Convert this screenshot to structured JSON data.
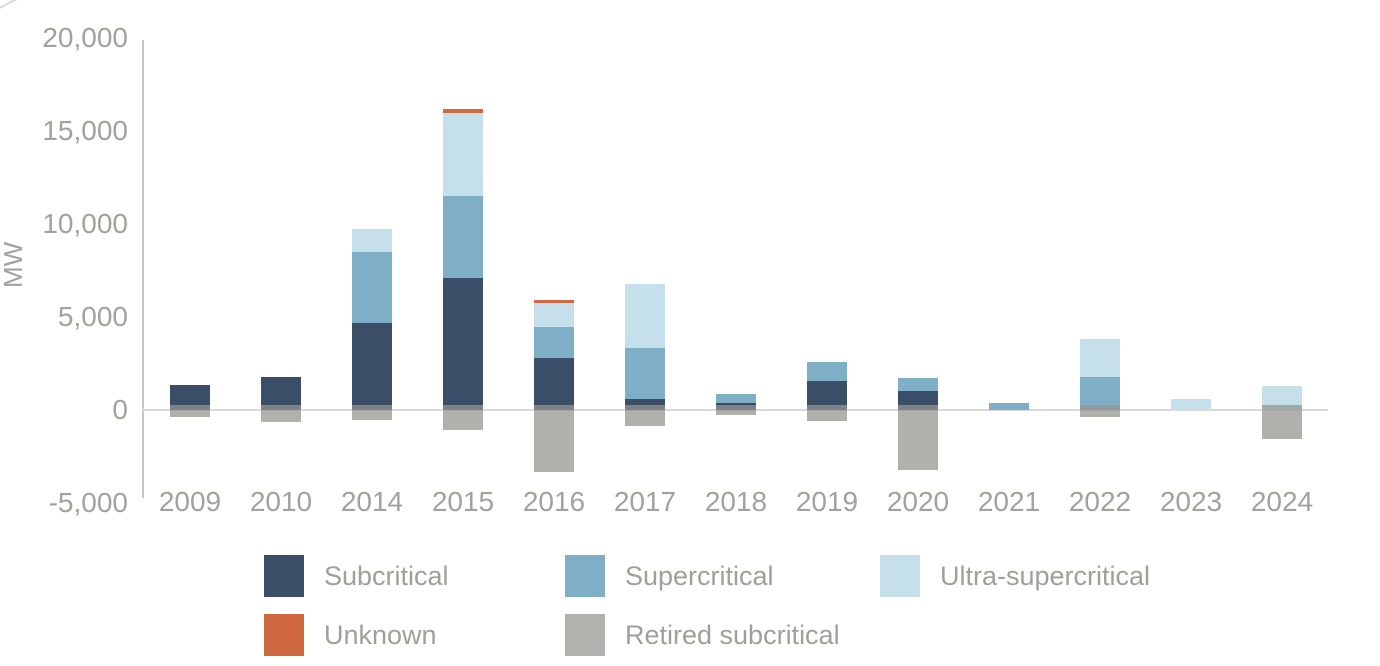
{
  "chart_data": {
    "type": "bar",
    "stacked": true,
    "title": "",
    "xlabel": "",
    "ylabel": "MW",
    "ylim": [
      -5000,
      20000
    ],
    "grid": false,
    "legend_position": "bottom",
    "yticks": [
      {
        "value": 20000,
        "label": "20,000"
      },
      {
        "value": 15000,
        "label": "15,000"
      },
      {
        "value": 10000,
        "label": "10,000"
      },
      {
        "value": 5000,
        "label": "5,000"
      },
      {
        "value": 0,
        "label": "0"
      },
      {
        "value": -5000,
        "label": "-5,000"
      }
    ],
    "categories": [
      "2009",
      "2010",
      "2014",
      "2015",
      "2016",
      "2017",
      "2018",
      "2019",
      "2020",
      "2021",
      "2022",
      "2023",
      "2024"
    ],
    "series": [
      {
        "name": "Subcritical",
        "color": "#3a4e68",
        "values": [
          1350,
          1800,
          4700,
          7100,
          2800,
          600,
          400,
          1550,
          1000,
          0,
          0,
          0,
          0
        ]
      },
      {
        "name": "Supercritical",
        "color": "#7fafc6",
        "values": [
          0,
          0,
          3800,
          4400,
          1650,
          2750,
          450,
          1050,
          700,
          400,
          1750,
          0,
          0
        ]
      },
      {
        "name": "Ultra-supercritical",
        "color": "#c5e0ea",
        "values": [
          0,
          0,
          1250,
          4450,
          1300,
          3450,
          0,
          0,
          0,
          0,
          2050,
          600,
          1300
        ]
      },
      {
        "name": "Unknown",
        "color": "#d0693f",
        "values": [
          0,
          0,
          0,
          250,
          150,
          0,
          0,
          0,
          0,
          0,
          0,
          0,
          0
        ]
      },
      {
        "name": "Retired subcritical",
        "color": "#b1b1ae",
        "values": [
          -400,
          -650,
          -550,
          -1100,
          -3350,
          -850,
          -250,
          -600,
          -3250,
          0,
          -400,
          0,
          -1550
        ]
      }
    ]
  }
}
